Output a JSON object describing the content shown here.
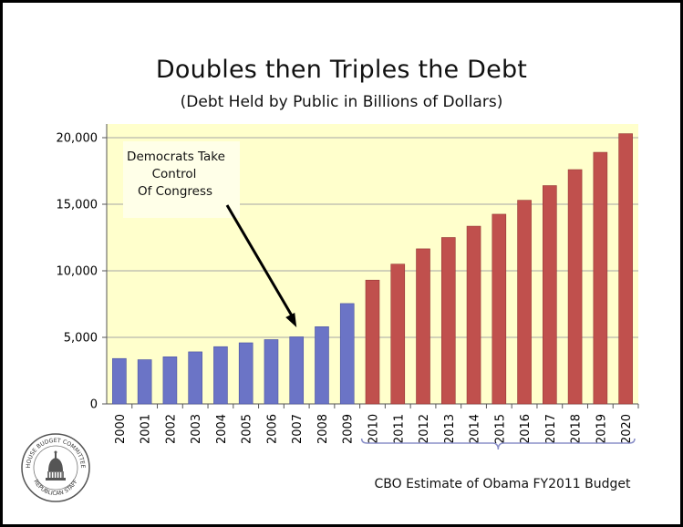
{
  "title": "Doubles then Triples the Debt",
  "subtitle": "(Debt Held by Public in Billions of Dollars)",
  "annotation": {
    "lines": [
      "Democrats Take",
      "Control",
      "Of Congress"
    ],
    "points_to": "2007"
  },
  "projection_label": "CBO Estimate of Obama FY2011 Budget",
  "seal": {
    "top_text": "HOUSE BUDGET COMMITTEE",
    "bottom_text": "REPUBLICAN STAFF",
    "icon": "capitol-dome-icon"
  },
  "colors": {
    "plot_background": "#FFFFCC",
    "historical_bar": "#6B74C6",
    "projected_bar": "#C0504D",
    "annotation_box": "#FFFFE8"
  },
  "chart_data": {
    "type": "bar",
    "title": "Doubles then Triples the Debt",
    "subtitle": "(Debt Held by Public in Billions of Dollars)",
    "xlabel": "",
    "ylabel": "",
    "ylim": [
      0,
      20000
    ],
    "yticks": [
      0,
      5000,
      10000,
      15000,
      20000
    ],
    "ytick_labels": [
      "0",
      "5,000",
      "10,000",
      "15,000",
      "20,000"
    ],
    "grid": true,
    "categories": [
      "2000",
      "2001",
      "2002",
      "2003",
      "2004",
      "2005",
      "2006",
      "2007",
      "2008",
      "2009",
      "2010",
      "2011",
      "2012",
      "2013",
      "2014",
      "2015",
      "2016",
      "2017",
      "2018",
      "2019",
      "2020"
    ],
    "series": [
      {
        "values": [
          3410,
          3320,
          3540,
          3910,
          4300,
          4590,
          4830,
          5040,
          5800,
          7540,
          null,
          null,
          null,
          null,
          null,
          null,
          null,
          null,
          null,
          null,
          null
        ]
      },
      {
        "values": [
          null,
          null,
          null,
          null,
          null,
          null,
          null,
          null,
          null,
          null,
          9300,
          10500,
          11650,
          12500,
          13350,
          14250,
          15300,
          16400,
          17600,
          18900,
          20300
        ]
      }
    ]
  }
}
